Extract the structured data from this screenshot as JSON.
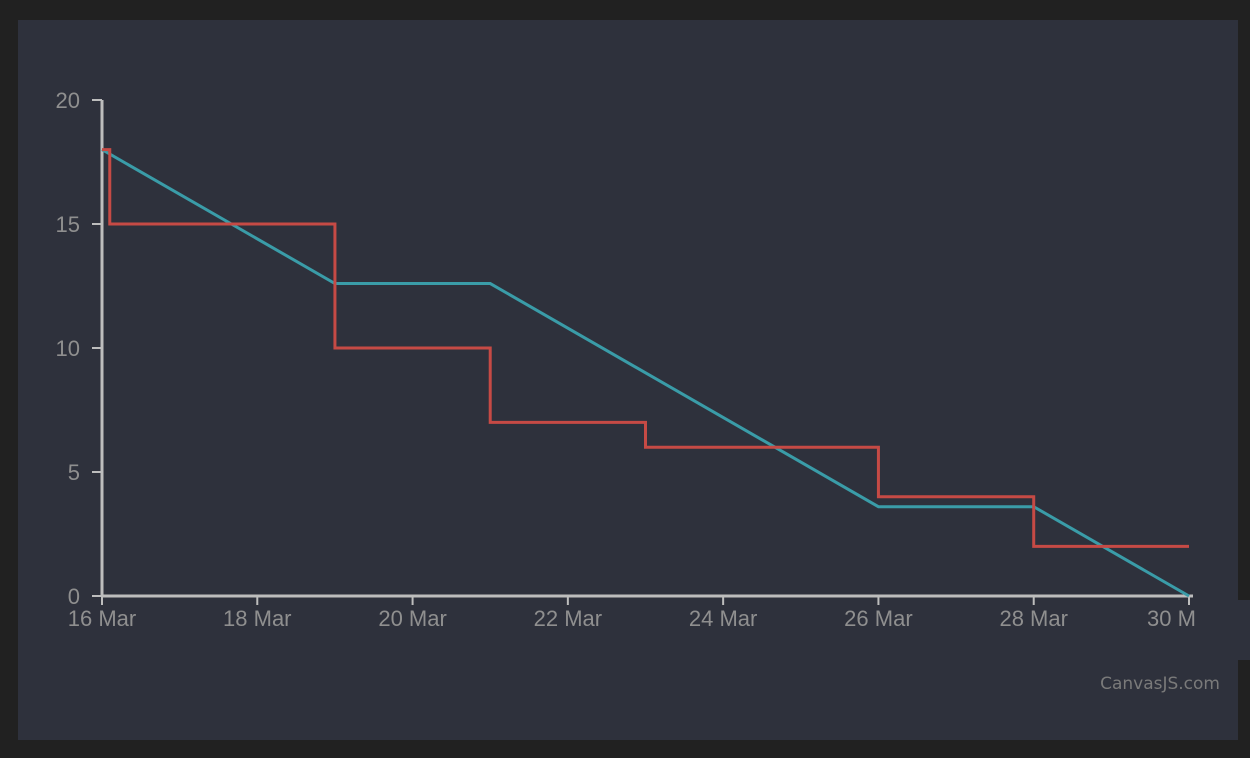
{
  "chart_data": {
    "type": "line",
    "title": "",
    "xlabel": "",
    "ylabel": "",
    "ylim": [
      0,
      20
    ],
    "xlim": [
      "2024-03-16",
      "2024-03-30"
    ],
    "x_tick_labels": [
      "16 Mar",
      "18 Mar",
      "20 Mar",
      "22 Mar",
      "24 Mar",
      "26 Mar",
      "28 Mar",
      "30 M"
    ],
    "y_tick_labels": [
      "0",
      "5",
      "10",
      "15",
      "20"
    ],
    "grid": false,
    "legend": "none",
    "series": [
      {
        "color": "#3A9CA8",
        "style": "line",
        "points": [
          {
            "x": "2024-03-16",
            "y": 18
          },
          {
            "x": "2024-03-19",
            "y": 12.6
          },
          {
            "x": "2024-03-21",
            "y": 12.6
          },
          {
            "x": "2024-03-26",
            "y": 3.6
          },
          {
            "x": "2024-03-28",
            "y": 3.6
          },
          {
            "x": "2024-03-30",
            "y": 0
          }
        ]
      },
      {
        "color": "#C64A45",
        "style": "stepLine",
        "points": [
          {
            "x": "2024-03-16",
            "y": 18
          },
          {
            "x": "2024-03-16.1",
            "y": 15
          },
          {
            "x": "2024-03-19",
            "y": 10
          },
          {
            "x": "2024-03-21",
            "y": 7
          },
          {
            "x": "2024-03-23",
            "y": 6
          },
          {
            "x": "2024-03-26",
            "y": 4
          },
          {
            "x": "2024-03-28",
            "y": 2
          },
          {
            "x": "2024-03-30",
            "y": 2
          }
        ]
      }
    ]
  },
  "credit": "CanvasJS.com"
}
